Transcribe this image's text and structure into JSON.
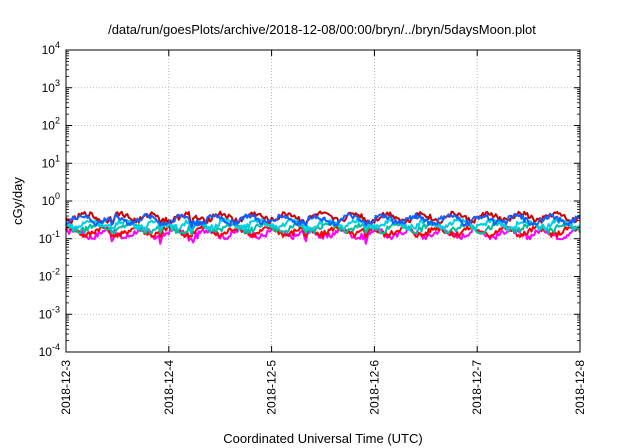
{
  "chart_data": {
    "type": "line",
    "title": "/data/run/goesPlots/archive/2018-12-08/00:00/bryn/../bryn/5daysMoon.plot",
    "xlabel": "Coordinated Universal Time (UTC)",
    "ylabel": "cGy/day",
    "y_scale": "log",
    "ylim": [
      0.0001,
      10000
    ],
    "y_ticks": [
      {
        "value": 0.0001,
        "base": "10",
        "exp": "-4"
      },
      {
        "value": 0.001,
        "base": "10",
        "exp": "-3"
      },
      {
        "value": 0.01,
        "base": "10",
        "exp": "-2"
      },
      {
        "value": 0.1,
        "base": "10",
        "exp": "-1"
      },
      {
        "value": 1,
        "base": "10",
        "exp": "0"
      },
      {
        "value": 10,
        "base": "10",
        "exp": "1"
      },
      {
        "value": 100,
        "base": "10",
        "exp": "2"
      },
      {
        "value": 1000,
        "base": "10",
        "exp": "3"
      },
      {
        "value": 10000,
        "base": "10",
        "exp": "4"
      }
    ],
    "xlim": [
      "2018-12-03",
      "2018-12-08"
    ],
    "x_ticks": [
      "2018-12-3",
      "2018-12-4",
      "2018-12-5",
      "2018-12-6",
      "2018-12-7",
      "2018-12-8"
    ],
    "grid": true,
    "series": [
      {
        "color": "#ff00ff",
        "base": 0.14,
        "dips": [
          [
            0.45,
            0.065
          ],
          [
            0.92,
            0.06
          ],
          [
            1.2,
            0.07
          ],
          [
            1.24,
            0.065
          ],
          [
            2.33,
            0.075
          ],
          [
            2.92,
            0.06
          ]
        ]
      },
      {
        "color": "#ff0000",
        "base": 0.16,
        "dips": [
          [
            0.45,
            0.1
          ],
          [
            0.92,
            0.1
          ],
          [
            1.2,
            0.09
          ],
          [
            2.33,
            0.1
          ],
          [
            2.92,
            0.1
          ]
        ]
      },
      {
        "color": "#00c0a0",
        "base": 0.2,
        "dips": [
          [
            0.45,
            0.13
          ],
          [
            0.92,
            0.13
          ],
          [
            1.22,
            0.12
          ],
          [
            2.33,
            0.13
          ],
          [
            2.92,
            0.13
          ]
        ]
      },
      {
        "color": "#00d0e0",
        "base": 0.25,
        "dips": [
          [
            0.45,
            0.16
          ],
          [
            0.92,
            0.16
          ],
          [
            1.22,
            0.15
          ],
          [
            2.33,
            0.16
          ],
          [
            2.92,
            0.16
          ]
        ]
      },
      {
        "color": "#cc0000",
        "base": 0.38,
        "dips": [
          [
            0.45,
            0.22
          ],
          [
            0.92,
            0.22
          ],
          [
            1.22,
            0.2
          ],
          [
            2.33,
            0.22
          ],
          [
            2.92,
            0.22
          ]
        ]
      },
      {
        "color": "#1060ff",
        "base": 0.33,
        "dips": [
          [
            0.45,
            0.2
          ],
          [
            0.92,
            0.2
          ],
          [
            1.22,
            0.18
          ],
          [
            2.33,
            0.2
          ],
          [
            2.92,
            0.2
          ]
        ]
      }
    ]
  },
  "colors": {
    "grid": "#aaaaaa",
    "axis": "#000000",
    "background": "#ffffff"
  }
}
